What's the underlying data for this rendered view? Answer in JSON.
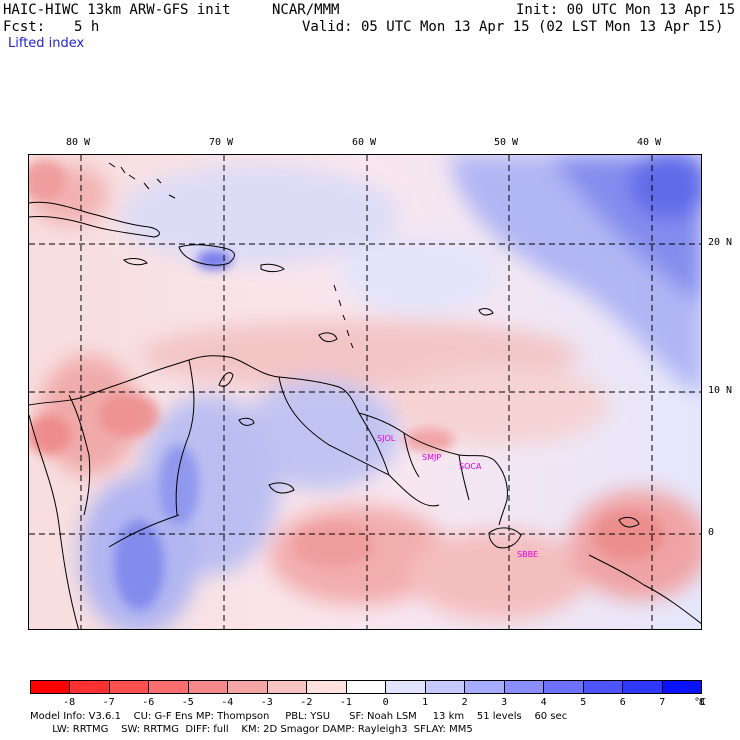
{
  "header": {
    "title_left": "HAIC-HIWC 13km ARW-GFS init",
    "source": "NCAR/MMM",
    "init": "Init: 00 UTC Mon 13 Apr 15",
    "fcst_label": "Fcst:",
    "fcst_value": "5 h",
    "valid": "Valid: 05 UTC Mon 13 Apr 15 (02 LST Mon 13 Apr 15)",
    "field": "Lifted index"
  },
  "map": {
    "lon_labels": [
      "80 W",
      "70 W",
      "60 W",
      "50 W",
      "40 W"
    ],
    "lat_labels": [
      "20 N",
      "10 N",
      "0"
    ],
    "cities": [
      "SJOL",
      "SMJP",
      "SOCA",
      "SBBE"
    ]
  },
  "colorbar": {
    "levels": [
      "-8",
      "-7",
      "-6",
      "-5",
      "-4",
      "-3",
      "-2",
      "-1",
      "0",
      "1",
      "2",
      "3",
      "4",
      "5",
      "6",
      "7",
      "8"
    ],
    "unit": "°C",
    "colors": [
      "#ff0000",
      "#ff3030",
      "#ff5050",
      "#fb6e6e",
      "#f58989",
      "#f4a5a5",
      "#f8c3c3",
      "#fde0e0",
      "#ffffff",
      "#e2e3ff",
      "#c6c9ff",
      "#a8acff",
      "#8a8fff",
      "#6c72ff",
      "#4e55ff",
      "#3037ff",
      "#0a12ff"
    ]
  },
  "footer": {
    "line1": "Model Info: V3.6.1    CU: G-F Ens MP: Thompson     PBL: YSU      SF: Noah LSM     13 km    51 levels    60 sec",
    "line2": "       LW: RRTMG    SW: RRTMG  DIFF: full    KM: 2D Smagor DAMP: Rayleigh3  SFLAY: MM5"
  }
}
